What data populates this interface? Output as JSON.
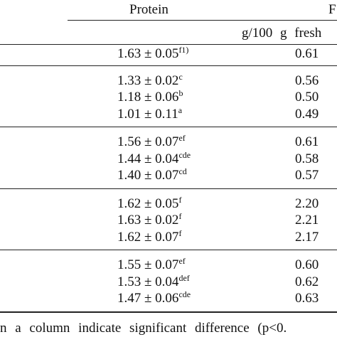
{
  "table": {
    "header": {
      "columns": [
        "Protein",
        "F"
      ],
      "unit": "g/100 g fresh"
    },
    "groups": [
      [
        [
          "1.63 ± 0.05",
          "f1)",
          "0.61"
        ]
      ],
      [
        [
          "1.33 ± 0.02",
          "c",
          "0.56"
        ],
        [
          "1.18 ± 0.06",
          "b",
          "0.50"
        ],
        [
          "1.01 ± 0.11",
          "a",
          "0.49"
        ]
      ],
      [
        [
          "1.56 ± 0.07",
          "ef",
          "0.61"
        ],
        [
          "1.44 ± 0.04",
          "cde",
          "0.58"
        ],
        [
          "1.40 ± 0.07",
          "cd",
          "0.57"
        ]
      ],
      [
        [
          "1.62 ± 0.05",
          "f",
          "2.20"
        ],
        [
          "1.63 ± 0.02",
          "f",
          "2.21"
        ],
        [
          "1.62 ± 0.07",
          "f",
          "2.17"
        ]
      ],
      [
        [
          "1.55 ± 0.07",
          "ef",
          "0.60"
        ],
        [
          "1.53 ± 0.04",
          "def",
          "0.62"
        ],
        [
          "1.47 ± 0.06",
          "cde",
          "0.63"
        ]
      ]
    ],
    "footnote": "n a column indicate significant difference (p<0."
  }
}
